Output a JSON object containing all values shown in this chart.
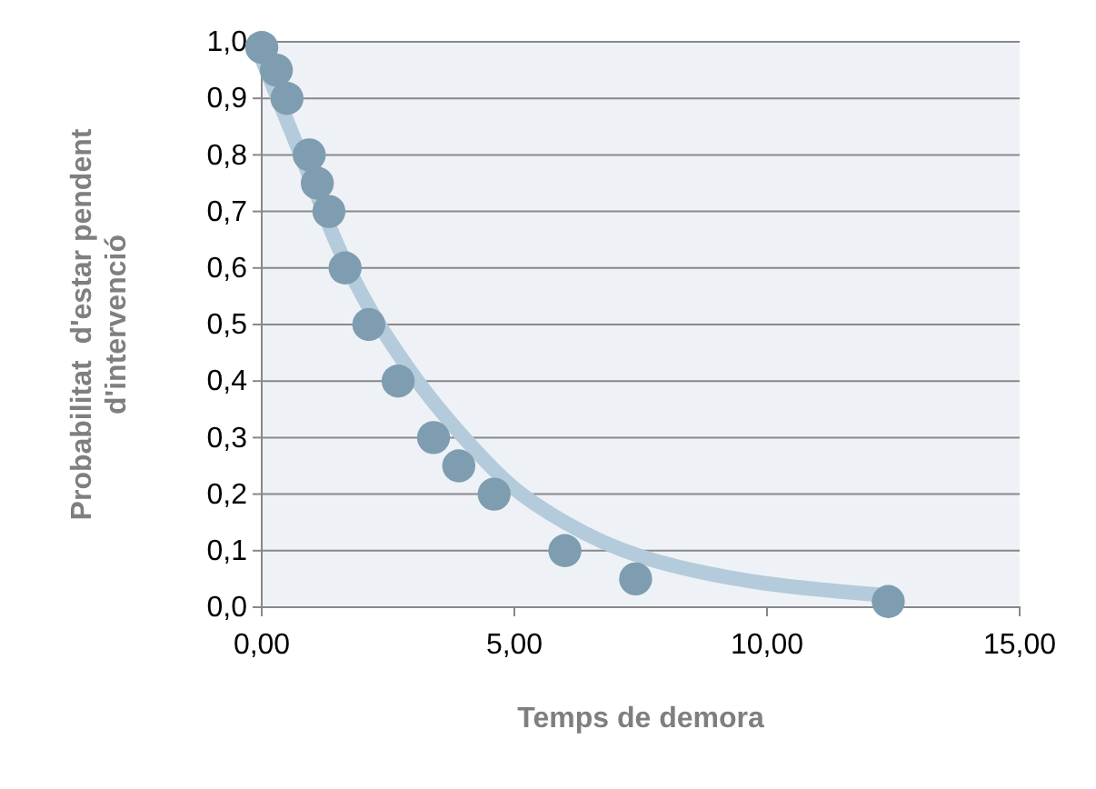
{
  "chart_data": {
    "type": "scatter",
    "xlabel": "Temps de demora",
    "ylabel": "Probabilitat  d'estar pendent\nd'intervenció",
    "xlim": [
      0,
      15
    ],
    "ylim": [
      0,
      1
    ],
    "xticks": [
      {
        "value": 0,
        "label": "0,00"
      },
      {
        "value": 5,
        "label": "5,00"
      },
      {
        "value": 10,
        "label": "10,00"
      },
      {
        "value": 15,
        "label": "15,00"
      }
    ],
    "yticks": [
      {
        "value": 0,
        "label": "0,0"
      },
      {
        "value": 0.1,
        "label": "0,1"
      },
      {
        "value": 0.2,
        "label": "0,2"
      },
      {
        "value": 0.3,
        "label": "0,3"
      },
      {
        "value": 0.4,
        "label": "0,4"
      },
      {
        "value": 0.5,
        "label": "0,5"
      },
      {
        "value": 0.6,
        "label": "0,6"
      },
      {
        "value": 0.7,
        "label": "0,7"
      },
      {
        "value": 0.8,
        "label": "0,8"
      },
      {
        "value": 0.9,
        "label": "0,9"
      },
      {
        "value": 1,
        "label": "1,0"
      }
    ],
    "grid": "y",
    "series": [
      {
        "type": "line",
        "marker": "none",
        "color": "#b4cbdb",
        "x": [
          0,
          0.5,
          1,
          1.5,
          2,
          3,
          4,
          5,
          6,
          7.5,
          12.5
        ],
        "values": [
          0.97,
          0.86,
          0.75,
          0.64,
          0.55,
          0.41,
          0.3,
          0.21,
          0.15,
          0.09,
          0.02
        ]
      },
      {
        "marker": "circle",
        "color": "#7f9db0",
        "x": [
          0,
          0.29,
          0.5,
          0.94,
          1.1,
          1.33,
          1.65,
          2.12,
          2.7,
          3.4,
          3.9,
          4.6,
          6,
          7.4,
          12.4
        ],
        "values": [
          0.99,
          0.95,
          0.9,
          0.8,
          0.75,
          0.7,
          0.6,
          0.5,
          0.4,
          0.3,
          0.25,
          0.2,
          0.1,
          0.05,
          0.01
        ]
      }
    ]
  }
}
